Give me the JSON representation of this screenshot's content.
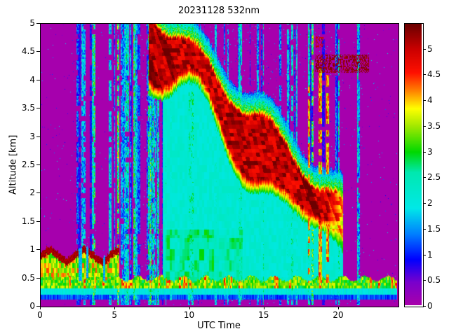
{
  "chart_data": {
    "type": "heatmap",
    "title": "20231128 532nm",
    "xlabel": "UTC Time",
    "ylabel": "Altitude [km]",
    "xlim": [
      0,
      24
    ],
    "ylim": [
      0,
      5
    ],
    "xticks": [
      0,
      5,
      10,
      15,
      20
    ],
    "yticks": [
      0,
      0.5,
      1,
      1.5,
      2,
      2.5,
      3,
      3.5,
      4,
      4.5,
      5
    ],
    "grid": false,
    "legend": "none",
    "colorbar": {
      "min": 0,
      "max": 5.5,
      "position": "right",
      "ticks": [
        0,
        0.5,
        1,
        1.5,
        2,
        2.5,
        3,
        3.5,
        4,
        4.5,
        5
      ]
    },
    "colormap": [
      [
        0.0,
        "#aa00aa"
      ],
      [
        0.45,
        "#7a00cc"
      ],
      [
        0.9,
        "#0000ff"
      ],
      [
        1.4,
        "#0080ff"
      ],
      [
        1.9,
        "#00e8e8"
      ],
      [
        2.6,
        "#00e8b0"
      ],
      [
        3.0,
        "#00d800"
      ],
      [
        3.5,
        "#a0e800"
      ],
      [
        3.85,
        "#ffff00"
      ],
      [
        4.2,
        "#ff8000"
      ],
      [
        4.55,
        "#ff1000"
      ],
      [
        5.0,
        "#cc0000"
      ],
      [
        5.5,
        "#6b0000"
      ]
    ],
    "features": {
      "background": 0.04,
      "speckle_t0": 4.8,
      "speckle_t1": 20.3,
      "layer": {
        "t0": 7.25,
        "t1": 20.35,
        "t_ref": 7.25,
        "base": 5.35,
        "slope": 0.27,
        "wiggle": 0.22,
        "thick": 1.15,
        "thick_var": 0.35,
        "core": 4.55,
        "core_var": 0.95,
        "fade_t": 19.2,
        "sub_t0": 8.2
      },
      "morning": {
        "t_end": 5.25,
        "top": 0.92,
        "gaps": [
          [
            2.55,
            2.75
          ],
          [
            3.05,
            3.18
          ],
          [
            4.2,
            4.33
          ]
        ]
      },
      "surface": {
        "top": 0.46,
        "b1": 0.1,
        "b2": 0.19,
        "b3": 0.3
      },
      "patch": {
        "t0": 18.45,
        "t1": 22.1,
        "z0": 4.14,
        "z1": 4.46,
        "b_t0": 18.5,
        "b_t1": 19.0,
        "b_z0": 4.58,
        "b_z1": 4.78
      },
      "plumes": [
        [
          18.05,
          0.09,
          4.05
        ],
        [
          18.8,
          0.11,
          4.35
        ],
        [
          19.3,
          0.09,
          4.1
        ]
      ],
      "stripes": {
        "seed": 20231128,
        "groups": [
          {
            "count": 46,
            "tmin": 4.9,
            "tmax": 20.2
          },
          {
            "count": 26,
            "tmin": 4.9,
            "tmax": 8.6
          },
          {
            "count": 8,
            "tmin": 2.2,
            "tmax": 4.8
          },
          {
            "count": 2,
            "tmin": 20.8,
            "tmax": 21.7
          }
        ]
      }
    }
  }
}
